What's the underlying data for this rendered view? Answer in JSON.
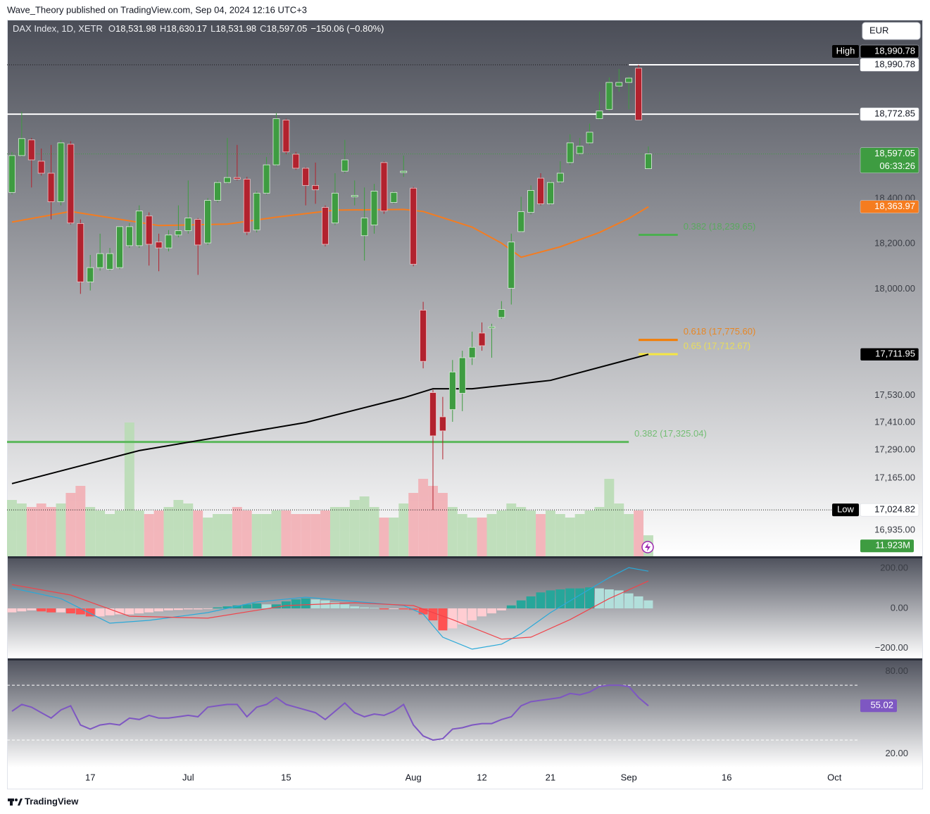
{
  "header": {
    "byline": "Wave_Theory published on TradingView.com, Sep 04, 2024 12:16 UTC+3",
    "currency": "EUR",
    "brand": "TradingView"
  },
  "chart_data": [
    {
      "type": "candlestick",
      "symbol": "DAX Index, 1D, XETR",
      "legend": [
        {
          "key": "O",
          "value": "18,531.98"
        },
        {
          "key": "H",
          "value": "18,630.17"
        },
        {
          "key": "L",
          "value": "18,531.98"
        },
        {
          "key": "C",
          "value": "18,597.05"
        }
      ],
      "change": "−150.06 (−0.80%)",
      "open": [
        18427,
        18590,
        18659,
        18565,
        18512,
        18386,
        18640,
        18290,
        18032,
        18095,
        18088,
        18095,
        18192,
        18192,
        18323,
        18208,
        18182,
        18239,
        18258,
        18308,
        18204,
        18392,
        18471,
        18493,
        18486,
        18261,
        18424,
        18549,
        18747,
        18596,
        18534,
        18458,
        18361,
        18292,
        18521,
        18408,
        18236,
        18283,
        18559,
        18383,
        18515,
        18446,
        17907,
        17543,
        17436,
        17468,
        17540,
        17697,
        17806,
        17828,
        17875,
        18004,
        18254,
        18339,
        18490,
        18377,
        18474,
        18559,
        18599,
        18646,
        18753,
        18794,
        18897,
        18913,
        18976,
        18531.98
      ],
      "high": [
        18606,
        18784,
        18668,
        18621,
        18637,
        18659,
        18653,
        18308,
        18151,
        18245,
        18182,
        18276,
        18292,
        18370,
        18339,
        18245,
        18261,
        18370,
        18480,
        18314,
        18402,
        18480,
        18668,
        18637,
        18496,
        18433,
        18584,
        18778,
        18753,
        18606,
        18540,
        18559,
        18370,
        18512,
        18659,
        18480,
        18449,
        18465,
        18565,
        18433,
        18590,
        18452,
        17944,
        17555,
        17524,
        17687,
        17728,
        17812,
        17853,
        17847,
        17947,
        18245,
        18408,
        18458,
        18512,
        18480,
        18565,
        18684,
        18668,
        18731,
        18872,
        18935,
        18972,
        18941,
        18990.78,
        18630.17
      ],
      "low": [
        18418,
        18584,
        18449,
        18502,
        18308,
        18370,
        18286,
        17979,
        17994,
        18082,
        18082,
        18088,
        18182,
        18182,
        18104,
        18079,
        18167,
        18229,
        18245,
        18063,
        18195,
        18383,
        18465,
        18480,
        18239,
        18251,
        18418,
        18543,
        18596,
        18527,
        18370,
        18377,
        18189,
        18283,
        18512,
        18370,
        18126,
        18245,
        18333,
        18377,
        18496,
        18101,
        17650,
        17024.82,
        17248,
        17414,
        17461,
        17665,
        17728,
        17697,
        17869,
        17932,
        18251,
        18330,
        18370,
        18370,
        18465,
        18549,
        18590,
        18637,
        18747,
        18787,
        18872,
        18794,
        18747.11,
        18531.98
      ],
      "close": [
        18590,
        18665,
        18571,
        18512,
        18386,
        18646,
        18292,
        18032,
        18095,
        18157,
        18157,
        18276,
        18276,
        18345,
        18198,
        18182,
        18239,
        18258,
        18314,
        18195,
        18392,
        18471,
        18493,
        18486,
        18251,
        18424,
        18549,
        18753,
        18606,
        18534,
        18458,
        18439,
        18198,
        18424,
        18571,
        18414,
        18314,
        18433,
        18345,
        18427,
        18521,
        18110,
        17681,
        17352,
        17374,
        17634,
        17697,
        17743,
        17750,
        17834,
        17910,
        18208,
        18342,
        18436,
        18377,
        18471,
        18512,
        18646,
        18631,
        18693,
        18787,
        18913,
        18913,
        18932,
        18747.11,
        18597.05
      ],
      "up_color": "#3e9c41",
      "down_color": "#b2222e",
      "xlim": [
        -0.5,
        86.5
      ],
      "xticks": [
        {
          "value": 8,
          "label": "17"
        },
        {
          "value": 18,
          "label": "Jul"
        },
        {
          "value": 28,
          "label": "15"
        },
        {
          "value": 41,
          "label": "Aug"
        },
        {
          "value": 48,
          "label": "12"
        },
        {
          "value": 55,
          "label": "21"
        },
        {
          "value": 63,
          "label": "Sep"
        },
        {
          "value": 73,
          "label": "16"
        },
        {
          "value": 84,
          "label": "Oct"
        }
      ],
      "ylim": [
        16820,
        19190
      ],
      "yticks": [
        {
          "value": 18400,
          "label": "18,400.00"
        },
        {
          "value": 18200,
          "label": "18,200.00"
        },
        {
          "value": 18000,
          "label": "18,000.00"
        },
        {
          "value": 17530,
          "label": "17,530.00"
        },
        {
          "value": 17410,
          "label": "17,410.00"
        },
        {
          "value": 17290,
          "label": "17,290.00"
        },
        {
          "value": 17165,
          "label": "17,165.00"
        },
        {
          "value": 16935,
          "label": "16,935.00"
        }
      ],
      "moving_averages": [
        {
          "color": "#f57c1f",
          "x": [
            0,
            6,
            15,
            22,
            27,
            33,
            40,
            42,
            47,
            50,
            52,
            56,
            60,
            63,
            65
          ],
          "values": [
            18296,
            18343,
            18281,
            18287,
            18318,
            18349,
            18352,
            18343,
            18274,
            18203,
            18141,
            18187,
            18250,
            18312,
            18363.97
          ]
        },
        {
          "color": "#000000",
          "x": [
            0,
            13,
            30,
            40,
            43,
            47,
            55,
            65
          ],
          "values": [
            17141,
            17287,
            17411,
            17520,
            17560,
            17560,
            17597,
            17711.95
          ]
        }
      ],
      "levels": [
        {
          "value": 18990.78,
          "color": "#1a1a1a",
          "style": "dotted"
        },
        {
          "value": 18990.78,
          "color": "#ffffff",
          "style": "solid",
          "span": [
            63,
            86.5
          ]
        },
        {
          "value": 18772.85,
          "color": "#ffffff",
          "style": "solid"
        },
        {
          "value": 18597.05,
          "color": "#3e9c41",
          "style": "dotted"
        },
        {
          "value": 17024.82,
          "color": "#1a1a1a",
          "style": "dotted"
        },
        {
          "value": 18239.65,
          "label": "0.382 (18,239.65)",
          "color": "#4caf50",
          "style": "fib",
          "span": [
            64,
            68
          ]
        },
        {
          "value": 17775.6,
          "label": "0.618 (17,775.60)",
          "color": "#f57c00",
          "style": "fib",
          "span": [
            64,
            68
          ]
        },
        {
          "value": 17712.67,
          "label": "0.65 (17,712.67)",
          "color": "#f5e642",
          "style": "fib",
          "span": [
            64,
            68
          ]
        },
        {
          "value": 17325.04,
          "label": "0.382 (17,325.04)",
          "color": "#5cb85c",
          "style": "fib",
          "span": [
            -0.5,
            63
          ]
        }
      ],
      "price_tags": [
        {
          "value": 18990.78,
          "label": "18,990.78",
          "bg": "#ffffff",
          "fg": "#131722"
        },
        {
          "value": 18990.78,
          "label": "18,990.78",
          "prefix": "High",
          "bg": "#000000",
          "fg": "#ffffff"
        },
        {
          "value": 18772.85,
          "label": "18,772.85",
          "bg": "#ffffff",
          "fg": "#131722"
        },
        {
          "value": 18597.05,
          "label": "18,597.05",
          "sub": "06:33:26",
          "bg": "#3e9c41",
          "fg": "#ffffff"
        },
        {
          "value": 18363.97,
          "label": "18,363.97",
          "bg": "#f57c1f",
          "fg": "#ffffff"
        },
        {
          "value": 17711.95,
          "label": "17,711.95",
          "bg": "#000000",
          "fg": "#ffffff"
        },
        {
          "value": 17024.82,
          "label": "17,024.82",
          "prefix": "Low",
          "bg": "#ffffff",
          "fg": "#131722"
        }
      ],
      "volume": {
        "values": [
          32,
          30,
          28,
          30,
          28,
          30,
          36,
          40,
          28,
          26,
          24,
          26,
          76,
          26,
          24,
          26,
          28,
          32,
          30,
          26,
          22,
          24,
          24,
          28,
          26,
          24,
          24,
          26,
          26,
          24,
          24,
          24,
          26,
          28,
          28,
          32,
          34,
          28,
          22,
          22,
          30,
          36,
          44,
          40,
          36,
          28,
          24,
          22,
          22,
          24,
          26,
          30,
          28,
          26,
          24,
          26,
          24,
          22,
          24,
          26,
          28,
          44,
          30,
          24,
          26,
          11.923
        ],
        "ylim": [
          0,
          80
        ],
        "up_color": "#b9dbb5",
        "down_color": "#f2aeb4",
        "tag": {
          "value": 11.923,
          "label": "11.923M",
          "bg": "#3e9c41"
        }
      }
    },
    {
      "type": "macd",
      "histogram": [
        -20,
        -15,
        -10,
        -15,
        -20,
        -20,
        -25,
        -30,
        -40,
        -40,
        -35,
        -30,
        -30,
        -25,
        -20,
        -15,
        -10,
        -8,
        -5,
        -5,
        -3,
        5,
        10,
        15,
        20,
        25,
        20,
        20,
        35,
        45,
        50,
        45,
        40,
        30,
        20,
        10,
        5,
        3,
        -5,
        -3,
        -5,
        -8,
        -30,
        -60,
        -110,
        -100,
        -80,
        -60,
        -40,
        -25,
        -10,
        15,
        40,
        60,
        80,
        90,
        95,
        100,
        100,
        105,
        100,
        95,
        90,
        75,
        60,
        40
      ],
      "colors": {
        "pos_up": "#26a69a",
        "pos_down": "#b2dfdb",
        "neg_down": "#ff5252",
        "neg_up": "#ffcdd2"
      },
      "macd": {
        "color": "#2aa9d8",
        "x": [
          0,
          5,
          10,
          14,
          20,
          25,
          30,
          35,
          40,
          42,
          44,
          47,
          50,
          52,
          55,
          58,
          61,
          63,
          65
        ],
        "values": [
          102,
          49,
          -74,
          -60,
          -21,
          32,
          56,
          35,
          14,
          -28,
          -144,
          -204,
          -179,
          -126,
          -21,
          67,
          154,
          204,
          186
        ]
      },
      "signal": {
        "color": "#f0434a",
        "x": [
          0,
          6,
          12,
          20,
          28,
          35,
          41,
          45,
          50,
          53,
          57,
          61,
          65
        ],
        "values": [
          119,
          67,
          -39,
          -49,
          14,
          28,
          14,
          -56,
          -154,
          -144,
          -56,
          49,
          137
        ]
      },
      "ylim": [
        -250,
        250
      ],
      "yticks": [
        {
          "value": 200,
          "label": "200.00"
        },
        {
          "value": 0,
          "label": "0.00"
        },
        {
          "value": -200,
          "label": "−200.00"
        }
      ]
    },
    {
      "type": "rsi",
      "values": [
        51,
        56,
        54,
        50,
        46,
        52,
        55,
        41,
        38,
        41,
        42,
        41,
        46,
        45,
        48,
        46,
        46,
        47,
        48,
        47,
        54,
        55,
        56,
        56,
        47,
        54,
        56,
        61,
        56,
        54,
        52,
        50,
        45,
        51,
        57,
        50,
        47,
        49,
        48,
        51,
        56,
        41,
        33,
        30,
        31,
        38,
        39,
        41,
        42,
        42,
        45,
        47,
        55,
        58,
        59,
        60,
        61,
        64,
        63,
        65,
        69,
        70,
        70,
        69,
        61,
        55.02
      ],
      "color": "#7e57c2",
      "ylim": [
        10,
        88
      ],
      "yticks": [
        {
          "value": 80,
          "label": "80.00"
        },
        {
          "value": 20,
          "label": "20.00"
        }
      ],
      "levels": [
        70,
        30
      ]
    }
  ]
}
